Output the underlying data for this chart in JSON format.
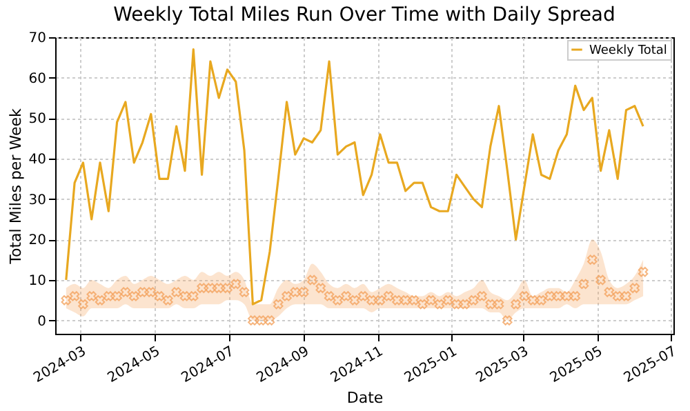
{
  "chart_data": {
    "type": "line",
    "title": "Weekly Total Miles Run Over Time with Daily Spread",
    "xlabel": "Date",
    "ylabel": "Total Miles per Week",
    "x": [
      "2024-02-18",
      "2024-02-25",
      "2024-03-03",
      "2024-03-10",
      "2024-03-17",
      "2024-03-24",
      "2024-03-31",
      "2024-04-07",
      "2024-04-14",
      "2024-04-21",
      "2024-04-28",
      "2024-05-05",
      "2024-05-12",
      "2024-05-19",
      "2024-05-26",
      "2024-06-02",
      "2024-06-09",
      "2024-06-16",
      "2024-06-23",
      "2024-06-30",
      "2024-07-07",
      "2024-07-14",
      "2024-07-21",
      "2024-07-28",
      "2024-08-04",
      "2024-08-11",
      "2024-08-18",
      "2024-08-25",
      "2024-09-01",
      "2024-09-08",
      "2024-09-15",
      "2024-09-22",
      "2024-09-29",
      "2024-10-06",
      "2024-10-13",
      "2024-10-20",
      "2024-10-27",
      "2024-11-03",
      "2024-11-10",
      "2024-11-17",
      "2024-11-24",
      "2024-12-01",
      "2024-12-08",
      "2024-12-15",
      "2024-12-22",
      "2024-12-29",
      "2025-01-05",
      "2025-01-12",
      "2025-01-19",
      "2025-01-26",
      "2025-02-02",
      "2025-02-09",
      "2025-02-16",
      "2025-02-23",
      "2025-03-02",
      "2025-03-09",
      "2025-03-16",
      "2025-03-23",
      "2025-03-30",
      "2025-04-06",
      "2025-04-13",
      "2025-04-20",
      "2025-04-27",
      "2025-05-04",
      "2025-05-11",
      "2025-05-18",
      "2025-05-25",
      "2025-06-01",
      "2025-06-08"
    ],
    "series": [
      {
        "type": "scatter",
        "color": "#f4a460",
        "marker": "cross",
        "lower": [
          3,
          2,
          1,
          3,
          3,
          3,
          3,
          4,
          3,
          3,
          3,
          3,
          3,
          4,
          3,
          3,
          4,
          4,
          4,
          5,
          5,
          4,
          0,
          0,
          0,
          1,
          3,
          4,
          4,
          4,
          4,
          3,
          3,
          3,
          3,
          3,
          2,
          3,
          3,
          3,
          3,
          3,
          3,
          3,
          3,
          3,
          3,
          3,
          3,
          3,
          2,
          2,
          0,
          2,
          3,
          3,
          3,
          3,
          3,
          4,
          3,
          4,
          4,
          4,
          4,
          4,
          4,
          5,
          6
        ],
        "upper": [
          8,
          9,
          8,
          10,
          9,
          8,
          10,
          11,
          9,
          10,
          11,
          10,
          9,
          10,
          11,
          10,
          12,
          11,
          12,
          11,
          12,
          10,
          4,
          4,
          4,
          8,
          10,
          9,
          10,
          14,
          12,
          9,
          8,
          9,
          8,
          9,
          7,
          8,
          9,
          8,
          7,
          6,
          6,
          7,
          6,
          7,
          6,
          7,
          8,
          10,
          7,
          6,
          5,
          7,
          10,
          6,
          7,
          8,
          8,
          7,
          10,
          14,
          20,
          17,
          10,
          8,
          9,
          11,
          15
        ],
        "values": [
          5,
          6,
          4,
          6,
          5,
          6,
          6,
          7,
          6,
          7,
          7,
          6,
          5,
          7,
          6,
          6,
          8,
          8,
          8,
          8,
          9,
          7,
          0,
          0,
          0,
          4,
          6,
          7,
          7,
          10,
          8,
          6,
          5,
          6,
          5,
          6,
          5,
          5,
          6,
          5,
          5,
          5,
          4,
          5,
          4,
          5,
          4,
          4,
          5,
          6,
          4,
          4,
          0,
          4,
          6,
          5,
          5,
          6,
          6,
          6,
          6,
          9,
          15,
          10,
          7,
          6,
          6,
          8,
          12
        ]
      },
      {
        "name": "Weekly Total",
        "color": "#e8a820",
        "values": [
          10,
          34,
          39,
          25,
          39,
          27,
          49,
          54,
          39,
          44,
          51,
          35,
          35,
          48,
          37,
          67,
          36,
          64,
          55,
          62,
          59,
          42,
          4,
          5,
          17,
          35,
          54,
          41,
          45,
          44,
          47,
          64,
          41,
          43,
          44,
          31,
          36,
          46,
          39,
          39,
          32,
          34,
          34,
          28,
          27,
          27,
          36,
          33,
          30,
          28,
          43,
          53,
          37,
          20,
          33,
          46,
          36,
          35,
          42,
          46,
          58,
          52,
          55,
          37,
          47,
          35,
          52,
          53,
          48
        ]
      }
    ],
    "xlim": [
      "2024-02-09",
      "2025-07-03"
    ],
    "xticks": [
      {
        "value": "2024-03-01",
        "label": "2024-03"
      },
      {
        "value": "2024-05-01",
        "label": "2024-05"
      },
      {
        "value": "2024-07-01",
        "label": "2024-07"
      },
      {
        "value": "2024-09-01",
        "label": "2024-09"
      },
      {
        "value": "2024-11-01",
        "label": "2024-11"
      },
      {
        "value": "2025-01-01",
        "label": "2025-01"
      },
      {
        "value": "2025-03-01",
        "label": "2025-03"
      },
      {
        "value": "2025-05-01",
        "label": "2025-05"
      },
      {
        "value": "2025-07-01",
        "label": "2025-07"
      }
    ],
    "ylim": [
      -3.3,
      70
    ],
    "yticks": [
      0,
      10,
      20,
      30,
      40,
      50,
      60,
      70
    ],
    "grid": true,
    "legend": "top right"
  }
}
